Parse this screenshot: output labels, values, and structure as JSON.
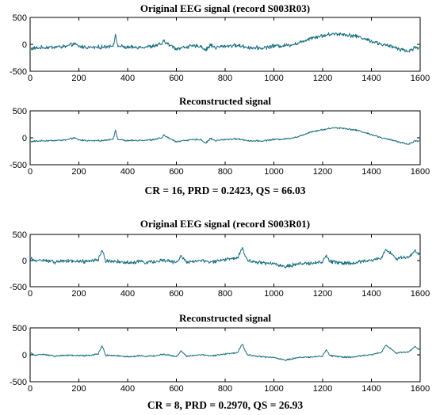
{
  "figure": {
    "captions": [
      "CR = 16, PRD = 0.2423, QS = 66.03",
      "CR = 8, PRD = 0.2970, QS = 26.93"
    ]
  },
  "chart_data": [
    {
      "type": "line",
      "title": "Original EEG signal (record S003R03)",
      "xlabel": "",
      "ylabel": "",
      "xlim": [
        0,
        1600
      ],
      "ylim": [
        -500,
        500
      ],
      "xticks": [
        "0",
        "200",
        "400",
        "600",
        "800",
        "1000",
        "1200",
        "1400",
        "1600"
      ],
      "yticks": [
        "500",
        "0",
        "-500"
      ],
      "color": "#1a6f80",
      "grid": false,
      "series": [
        {
          "x": [
            0,
            50,
            100,
            150,
            180,
            200,
            250,
            300,
            340,
            350,
            360,
            400,
            450,
            500,
            540,
            550,
            570,
            600,
            650,
            700,
            720,
            740,
            760,
            800,
            850,
            900,
            950,
            1000,
            1050,
            1100,
            1150,
            1200,
            1250,
            1300,
            1350,
            1400,
            1450,
            1500,
            1550,
            1580,
            1600
          ],
          "y": [
            -80,
            -60,
            -50,
            -40,
            10,
            -40,
            -60,
            -50,
            -20,
            150,
            -30,
            -60,
            -50,
            -40,
            10,
            60,
            -10,
            -80,
            -40,
            -30,
            -110,
            -10,
            -60,
            -30,
            -20,
            -60,
            -70,
            -30,
            -20,
            20,
            120,
            160,
            200,
            180,
            140,
            60,
            -10,
            -60,
            -130,
            -60,
            -60
          ]
        }
      ]
    },
    {
      "type": "line",
      "title": "Reconstructed signal",
      "xlabel": "",
      "ylabel": "",
      "xlim": [
        0,
        1600
      ],
      "ylim": [
        -500,
        500
      ],
      "xticks": [
        "0",
        "200",
        "400",
        "600",
        "800",
        "1000",
        "1200",
        "1400",
        "1600"
      ],
      "yticks": [
        "500",
        "0",
        "-500"
      ],
      "color": "#1a6f80",
      "grid": false,
      "series": [
        {
          "x": [
            0,
            50,
            100,
            150,
            180,
            200,
            250,
            300,
            340,
            350,
            360,
            400,
            450,
            500,
            540,
            550,
            570,
            600,
            650,
            700,
            720,
            740,
            760,
            800,
            850,
            900,
            950,
            1000,
            1050,
            1100,
            1150,
            1200,
            1250,
            1300,
            1350,
            1400,
            1450,
            1500,
            1550,
            1580,
            1600
          ],
          "y": [
            -70,
            -55,
            -50,
            -40,
            0,
            -40,
            -55,
            -50,
            -20,
            130,
            -30,
            -55,
            -45,
            -40,
            0,
            50,
            -10,
            -70,
            -40,
            -30,
            -100,
            -10,
            -55,
            -30,
            -20,
            -55,
            -60,
            -30,
            -20,
            20,
            110,
            150,
            190,
            170,
            130,
            60,
            -10,
            -60,
            -120,
            -60,
            -55
          ]
        }
      ]
    },
    {
      "type": "line",
      "title": "Original EEG signal (record S003R01)",
      "xlabel": "",
      "ylabel": "",
      "xlim": [
        0,
        1600
      ],
      "ylim": [
        -500,
        500
      ],
      "xticks": [
        "0",
        "200",
        "400",
        "600",
        "800",
        "1000",
        "1200",
        "1400",
        "1600"
      ],
      "yticks": [
        "500",
        "0",
        "-500"
      ],
      "color": "#1a6f80",
      "grid": false,
      "series": [
        {
          "x": [
            0,
            20,
            50,
            100,
            150,
            200,
            250,
            280,
            295,
            310,
            350,
            400,
            450,
            500,
            550,
            600,
            620,
            640,
            700,
            750,
            800,
            850,
            870,
            890,
            950,
            1000,
            1050,
            1100,
            1150,
            1200,
            1215,
            1230,
            1300,
            1350,
            1400,
            1440,
            1460,
            1500,
            1550,
            1580,
            1600
          ],
          "y": [
            50,
            -20,
            10,
            -30,
            -10,
            -20,
            -10,
            20,
            200,
            -10,
            -20,
            -40,
            -20,
            -30,
            10,
            -40,
            80,
            -30,
            0,
            -20,
            20,
            40,
            240,
            0,
            -40,
            -60,
            -120,
            -60,
            -50,
            -30,
            110,
            -20,
            -60,
            -20,
            0,
            50,
            210,
            40,
            60,
            180,
            90
          ]
        }
      ]
    },
    {
      "type": "line",
      "title": "Reconstructed signal",
      "xlabel": "",
      "ylabel": "",
      "xlim": [
        0,
        1600
      ],
      "ylim": [
        -500,
        500
      ],
      "xticks": [
        "0",
        "200",
        "400",
        "600",
        "800",
        "1000",
        "1200",
        "1400",
        "1600"
      ],
      "yticks": [
        "500",
        "0",
        "-500"
      ],
      "color": "#1a6f80",
      "grid": false,
      "series": [
        {
          "x": [
            0,
            20,
            50,
            100,
            150,
            200,
            250,
            280,
            295,
            310,
            350,
            400,
            450,
            500,
            550,
            600,
            620,
            640,
            700,
            750,
            800,
            850,
            870,
            890,
            950,
            1000,
            1050,
            1100,
            1150,
            1200,
            1215,
            1230,
            1300,
            1350,
            1400,
            1440,
            1460,
            1500,
            1550,
            1580,
            1600
          ],
          "y": [
            40,
            -15,
            10,
            -25,
            -10,
            -15,
            -10,
            20,
            170,
            -10,
            -15,
            -35,
            -20,
            -25,
            10,
            -35,
            70,
            -25,
            0,
            -15,
            15,
            35,
            200,
            0,
            -35,
            -50,
            -100,
            -50,
            -40,
            -25,
            100,
            -15,
            -50,
            -20,
            0,
            45,
            180,
            35,
            50,
            150,
            80
          ]
        }
      ]
    }
  ]
}
